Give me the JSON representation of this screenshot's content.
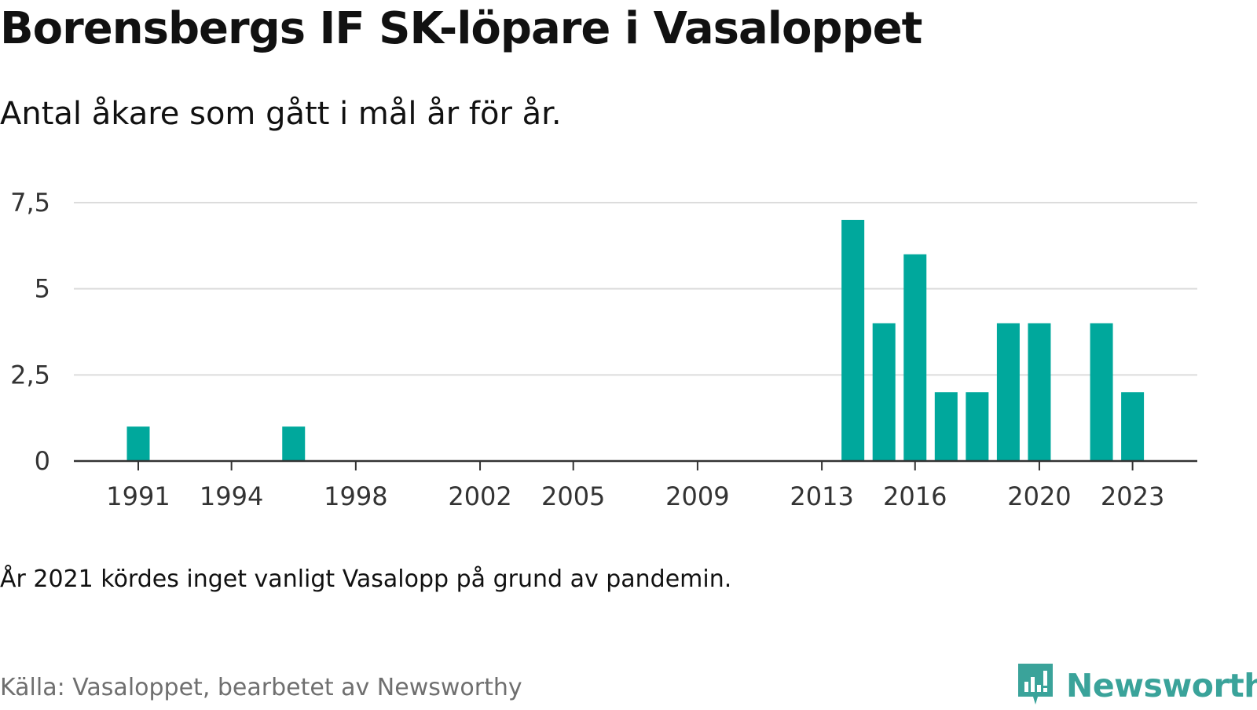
{
  "header": {
    "title": "Borensbergs IF SK-löpare i Vasaloppet",
    "subtitle": "Antal åkare som gått i mål år för år."
  },
  "footer": {
    "note": "År 2021 kördes inget vanligt Vasalopp på grund av pandemin.",
    "source": "Källa: Vasaloppet, bearbetet av Newsworthy",
    "brand": "Newsworthy"
  },
  "colors": {
    "bar": "#00a89c",
    "brand": "#3aa39a",
    "grid": "#dcdcdc",
    "axis": "#333333"
  },
  "icons": {
    "brand_logo": "newsworthy-logo-icon"
  },
  "chart_data": {
    "type": "bar",
    "x": [
      1991,
      1996,
      2014,
      2015,
      2016,
      2017,
      2018,
      2019,
      2020,
      2022,
      2023
    ],
    "values": [
      1,
      1,
      7,
      4,
      6,
      2,
      2,
      4,
      4,
      4,
      2
    ],
    "x_ticks": [
      "1991",
      "1994",
      "1998",
      "2002",
      "2005",
      "2009",
      "2013",
      "2016",
      "2020",
      "2023"
    ],
    "y_ticks": [
      "0",
      "2,5",
      "5",
      "7,5"
    ],
    "y_tick_values": [
      0,
      2.5,
      5,
      7.5
    ],
    "xlim": [
      1988.5,
      2025
    ],
    "ylim": [
      0,
      7.5
    ],
    "grid": true
  }
}
